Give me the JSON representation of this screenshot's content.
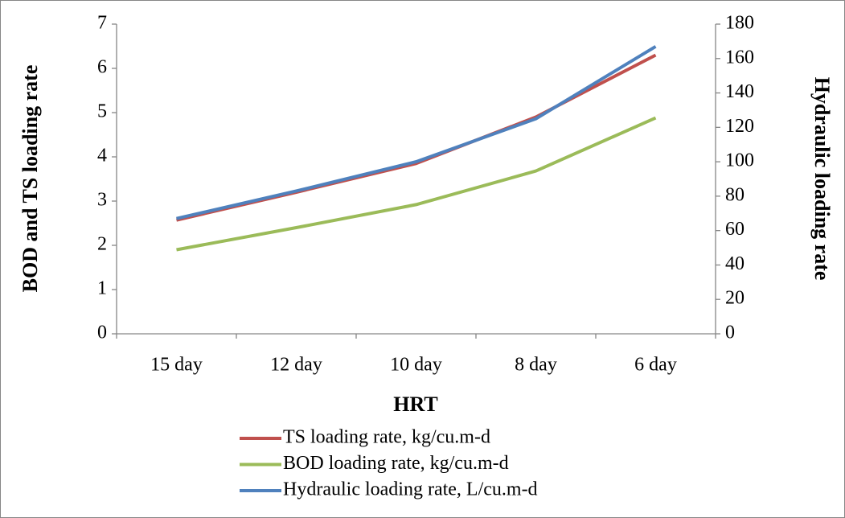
{
  "chart_data": {
    "type": "line",
    "x_label": "HRT",
    "y_label": "BOD and TS loading rate",
    "y2_label": "Hydraulic loading rate",
    "categories": [
      "15 day",
      "12 day",
      "10 day",
      "8 day",
      "6 day"
    ],
    "series": [
      {
        "name": "TS loading rate, kg/cu.m-d",
        "color": "#c0504d",
        "values": [
          2.57,
          3.2,
          3.85,
          4.9,
          6.3
        ]
      },
      {
        "name": "BOD loading rate, kg/cu.m-d",
        "color": "#9bbb59",
        "values": [
          1.9,
          2.4,
          2.92,
          3.68,
          4.88
        ]
      },
      {
        "name": "Hydraulic loading rate, L/cu.m-d",
        "color": "#4f81bd",
        "values": [
          67,
          83,
          100,
          125,
          167
        ],
        "axis": "y2"
      }
    ],
    "ylim": [
      0,
      7
    ],
    "yticks": [
      0,
      1,
      2,
      3,
      4,
      5,
      6,
      7
    ],
    "y2lim": [
      0,
      180
    ],
    "y2ticks": [
      0,
      20,
      40,
      60,
      80,
      100,
      120,
      140,
      160,
      180
    ],
    "legend": "bottom"
  }
}
